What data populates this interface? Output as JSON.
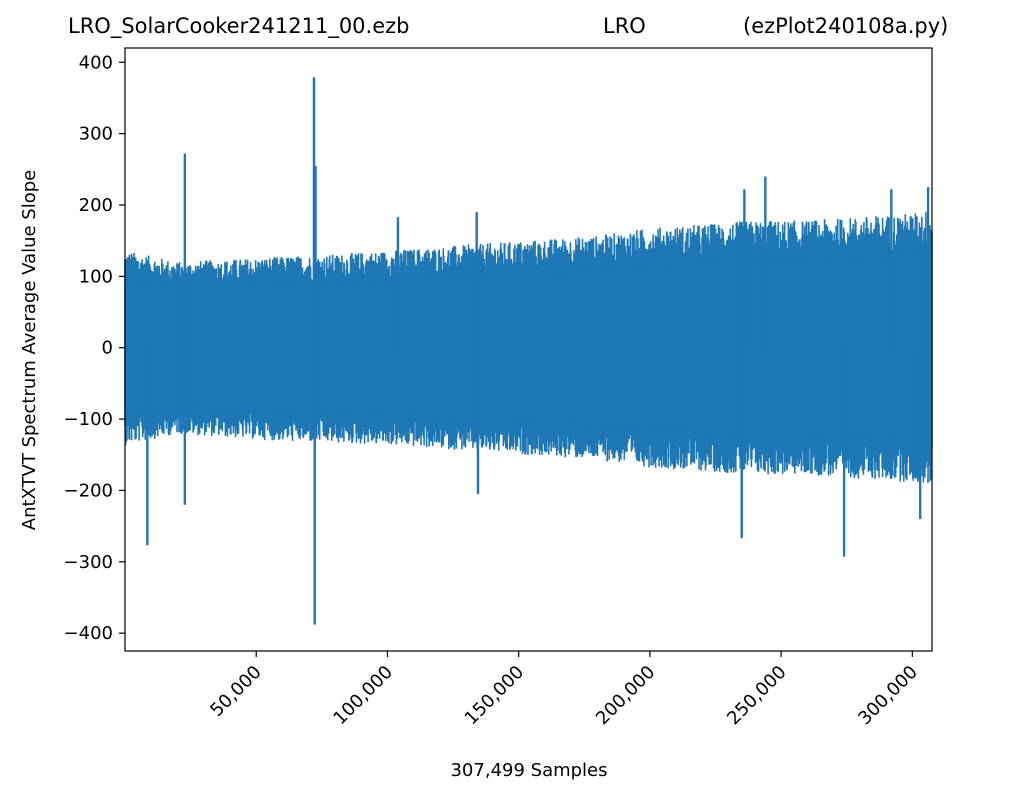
{
  "chart_data": {
    "type": "line",
    "title_left": "LRO_SolarCooker241211_00.ezb",
    "title_center": "LRO",
    "title_right": "(ezPlot240108a.py)",
    "xlabel": "307,499 Samples",
    "ylabel": "AntXTVT Spectrum Average Value Slope",
    "xlim": [
      0,
      307499
    ],
    "ylim": [
      -425,
      420
    ],
    "x_ticks": [
      50000,
      100000,
      150000,
      200000,
      250000,
      300000
    ],
    "x_tick_labels": [
      "50,000",
      "100,000",
      "150,000",
      "200,000",
      "250,000",
      "300,000"
    ],
    "y_ticks": [
      400,
      300,
      200,
      100,
      0,
      -100,
      -200,
      -300,
      -400
    ],
    "y_tick_labels": [
      "400",
      "300",
      "200",
      "100",
      "0",
      "−100",
      "−200",
      "−300",
      "−400"
    ],
    "series_color": "#1f77b4",
    "grid": false,
    "envelope": {
      "x": [
        0,
        20000,
        40000,
        60000,
        80000,
        100000,
        120000,
        140000,
        160000,
        180000,
        200000,
        220000,
        240000,
        260000,
        280000,
        300000,
        307499
      ],
      "upper": [
        130,
        115,
        118,
        122,
        125,
        130,
        135,
        140,
        145,
        150,
        160,
        165,
        170,
        170,
        175,
        180,
        185
      ],
      "lower": [
        -130,
        -115,
        -120,
        -125,
        -128,
        -130,
        -135,
        -140,
        -145,
        -150,
        -160,
        -165,
        -170,
        -170,
        -175,
        -180,
        -185
      ]
    },
    "spikes": [
      {
        "x": 8500,
        "y": -277
      },
      {
        "x": 22800,
        "y": 272
      },
      {
        "x": 22800,
        "y": -220
      },
      {
        "x": 72000,
        "y": 379
      },
      {
        "x": 72300,
        "y": -388
      },
      {
        "x": 72600,
        "y": 255
      },
      {
        "x": 104000,
        "y": 183
      },
      {
        "x": 134000,
        "y": 190
      },
      {
        "x": 134500,
        "y": -205
      },
      {
        "x": 235000,
        "y": -267
      },
      {
        "x": 236000,
        "y": 222
      },
      {
        "x": 244000,
        "y": 240
      },
      {
        "x": 274000,
        "y": -293
      },
      {
        "x": 292000,
        "y": 222
      },
      {
        "x": 303000,
        "y": -240
      },
      {
        "x": 306000,
        "y": 225
      }
    ]
  }
}
